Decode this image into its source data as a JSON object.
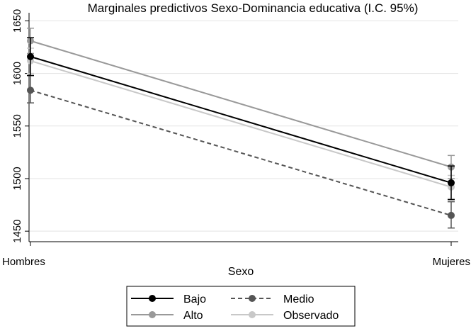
{
  "chart_data": {
    "type": "line",
    "title": "Marginales predictivos Sexo-Dominancia educativa (I.C. 95%)",
    "xlabel": "Sexo",
    "ylabel": "",
    "categories": [
      "Hombres",
      "Mujeres"
    ],
    "ylim": [
      1440,
      1655
    ],
    "yticks": [
      1450,
      1500,
      1550,
      1600,
      1650
    ],
    "grid": true,
    "legend_position": "bottom",
    "series": [
      {
        "name": "Bajo",
        "values": [
          1616,
          1496
        ],
        "ci_low": [
          1598,
          1480
        ],
        "ci_high": [
          1634,
          1512
        ],
        "color": "#000000",
        "dashed": false
      },
      {
        "name": "Medio",
        "values": [
          1584,
          1465
        ],
        "ci_low": [
          1572,
          1453
        ],
        "ci_high": [
          1598,
          1478
        ],
        "color": "#555555",
        "dashed": true
      },
      {
        "name": "Alto",
        "values": [
          1631,
          1511
        ],
        "ci_low": [
          1619,
          1500
        ],
        "ci_high": [
          1643,
          1522
        ],
        "color": "#999999",
        "dashed": false
      },
      {
        "name": "Observado",
        "values": [
          1612,
          1492
        ],
        "ci_low": [
          1600,
          1481
        ],
        "ci_high": [
          1624,
          1503
        ],
        "color": "#c8c8c8",
        "dashed": false
      }
    ]
  }
}
